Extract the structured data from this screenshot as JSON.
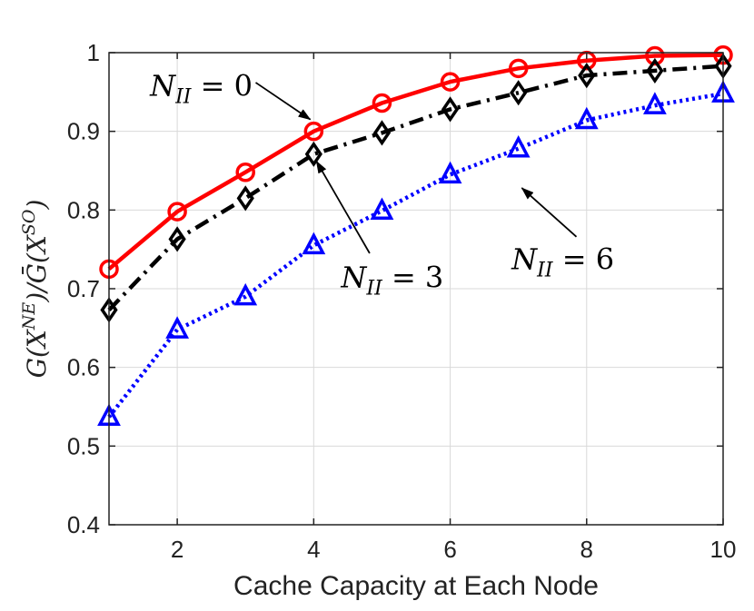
{
  "chart_data": {
    "type": "line",
    "title": "",
    "xlabel": "Cache Capacity at Each Node",
    "ylabel": {
      "base": "G(X",
      "sup1": "NE",
      "mid": ")/Ḡ(X",
      "sup2": "SO",
      "end": ")"
    },
    "xlim": [
      1,
      10
    ],
    "ylim": [
      0.4,
      1.0
    ],
    "xticks": [
      2,
      4,
      6,
      8,
      10
    ],
    "yticks": [
      0.4,
      0.5,
      0.6,
      0.7,
      0.8,
      0.9,
      1.0
    ],
    "ytick_labels": [
      "0.4",
      "0.5",
      "0.6",
      "0.7",
      "0.8",
      "0.9",
      "1"
    ],
    "grid": true,
    "x": [
      1,
      2,
      3,
      4,
      5,
      6,
      7,
      8,
      9,
      10
    ],
    "series": [
      {
        "key": "n0",
        "values": [
          0.725,
          0.798,
          0.848,
          0.9,
          0.936,
          0.963,
          0.98,
          0.99,
          0.996,
          0.997
        ],
        "color": "#ff0000",
        "marker": "circle",
        "dash": "solid"
      },
      {
        "key": "n3",
        "values": [
          0.673,
          0.763,
          0.815,
          0.871,
          0.898,
          0.928,
          0.949,
          0.971,
          0.977,
          0.983
        ],
        "color": "#000000",
        "marker": "diamond",
        "dash": "dashdot"
      },
      {
        "key": "n6",
        "values": [
          0.537,
          0.648,
          0.69,
          0.755,
          0.799,
          0.845,
          0.878,
          0.914,
          0.933,
          0.948
        ],
        "color": "#0000ff",
        "marker": "triangle",
        "dash": "dotted"
      }
    ],
    "annotations": [
      {
        "key": "n0",
        "base": "N",
        "sub": "II",
        "rhs": " = 0",
        "text_at": [
          1.6,
          0.945
        ],
        "arrow_from": [
          3.15,
          0.962
        ],
        "arrow_to": [
          3.95,
          0.915
        ]
      },
      {
        "key": "n3",
        "base": "N",
        "sub": "II",
        "rhs": " = 3",
        "text_at": [
          4.4,
          0.702
        ],
        "arrow_from": [
          4.82,
          0.745
        ],
        "arrow_to": [
          4.04,
          0.862
        ]
      },
      {
        "key": "n6",
        "base": "N",
        "sub": "II",
        "rhs": " = 6",
        "text_at": [
          6.9,
          0.725
        ],
        "arrow_from": [
          7.85,
          0.766
        ],
        "arrow_to": [
          7.05,
          0.828
        ]
      }
    ]
  }
}
